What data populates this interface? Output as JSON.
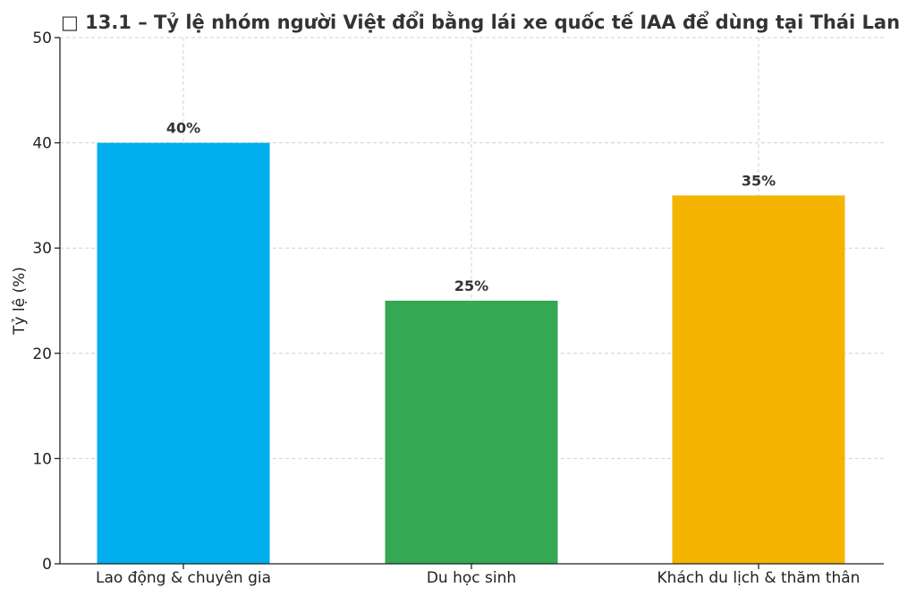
{
  "chart_data": {
    "type": "bar",
    "title": "□ 13.1 – Tỷ lệ nhóm người Việt đổi bằng lái xe quốc tế IAA để dùng tại Thái Lan",
    "xlabel": "",
    "ylabel": "Tỷ lệ (%)",
    "ylim": [
      0,
      50
    ],
    "yticks": [
      "0",
      "10",
      "20",
      "30",
      "40",
      "50"
    ],
    "categories": [
      "Lao động & chuyên gia",
      "Du học sinh",
      "Khách du lịch & thăm thân"
    ],
    "values": [
      40,
      25,
      35
    ],
    "data_labels": [
      "40%",
      "25%",
      "35%"
    ],
    "colors": [
      "#00AEEF",
      "#34A853",
      "#F4B400"
    ],
    "grid": true,
    "legend": "none"
  }
}
